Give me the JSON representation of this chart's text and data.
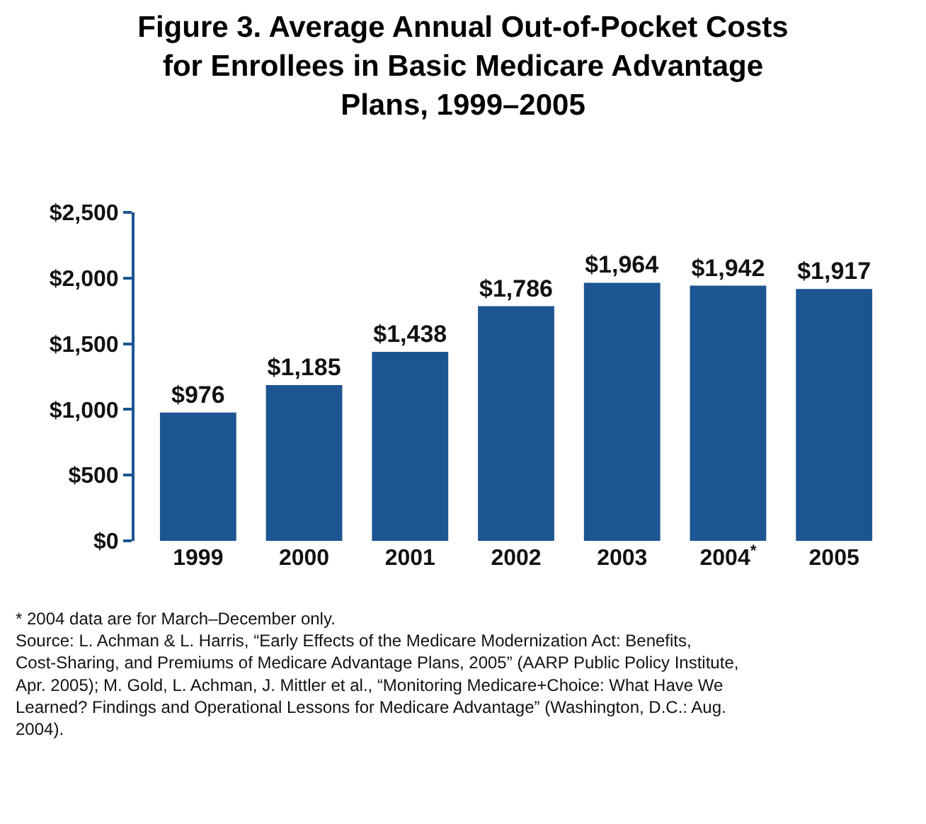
{
  "chart_data": {
    "type": "bar",
    "title": "Figure 3. Average Annual Out-of-Pocket Costs for Enrollees in Basic Medicare Advantage Plans, 1999–2005",
    "categories": [
      "1999",
      "2000",
      "2001",
      "2002",
      "2003",
      "2004$^{*}$",
      "2005"
    ],
    "values": [
      976,
      1185,
      1438,
      1786,
      1964,
      1942,
      1917
    ],
    "value_labels": [
      "$976",
      "$1,185",
      "$1,438",
      "$1,786",
      "$1,964",
      "$1,942",
      "$1,917"
    ],
    "color": "#1d5592",
    "ylim": [
      0,
      2500
    ],
    "yticks": [
      {
        "value": 0,
        "label": "$0"
      },
      {
        "value": 500,
        "label": "$500"
      },
      {
        "value": 1000,
        "label": "$1,000"
      },
      {
        "value": 1500,
        "label": "$1,500"
      },
      {
        "value": 2000,
        "label": "$2,000"
      },
      {
        "value": 2500,
        "label": "$2,500"
      }
    ],
    "legend": false,
    "annotations": [
      "* 2004 data are for March–December only.",
      "Source: L. Achman & L. Harris, “Early Effects of the Medicare Modernization Act: Benefits, Cost-Sharing, and Premiums of Medicare Advantage Plans, 2005” (AARP Public Policy Institute, Apr. 2005); M. Gold, L. Achman, J. Mittler et al., “Monitoring Medicare+Choice: What Have We Learned? Findings and Operational Lessons for Medicare Advantage” (Washington, D.C.: Aug. 2004)."
    ]
  }
}
